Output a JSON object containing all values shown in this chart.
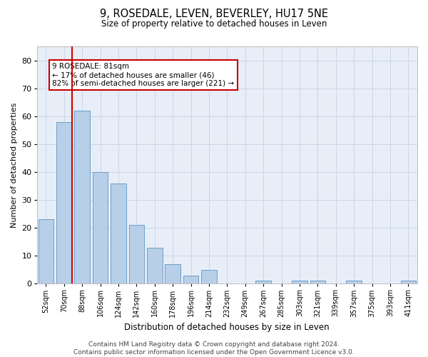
{
  "title": "9, ROSEDALE, LEVEN, BEVERLEY, HU17 5NE",
  "subtitle": "Size of property relative to detached houses in Leven",
  "xlabel": "Distribution of detached houses by size in Leven",
  "ylabel": "Number of detached properties",
  "bar_labels": [
    "52sqm",
    "70sqm",
    "88sqm",
    "106sqm",
    "124sqm",
    "142sqm",
    "160sqm",
    "178sqm",
    "196sqm",
    "214sqm",
    "232sqm",
    "249sqm",
    "267sqm",
    "285sqm",
    "303sqm",
    "321sqm",
    "339sqm",
    "357sqm",
    "375sqm",
    "393sqm",
    "411sqm"
  ],
  "bar_values": [
    23,
    58,
    62,
    40,
    36,
    21,
    13,
    7,
    3,
    5,
    0,
    0,
    1,
    0,
    1,
    1,
    0,
    1,
    0,
    0,
    1
  ],
  "bar_color": "#b8cfe8",
  "bar_edge_color": "#6a9fc8",
  "vline_x_index": 1,
  "vline_color": "#cc0000",
  "annotation_text": "9 ROSEDALE: 81sqm\n← 17% of detached houses are smaller (46)\n82% of semi-detached houses are larger (221) →",
  "annotation_box_color": "#ffffff",
  "annotation_box_edge": "#cc0000",
  "ylim": [
    0,
    85
  ],
  "yticks": [
    0,
    10,
    20,
    30,
    40,
    50,
    60,
    70,
    80
  ],
  "grid_color": "#ccd5e8",
  "bg_color": "#e8eef8",
  "footer": "Contains HM Land Registry data © Crown copyright and database right 2024.\nContains public sector information licensed under the Open Government Licence v3.0."
}
